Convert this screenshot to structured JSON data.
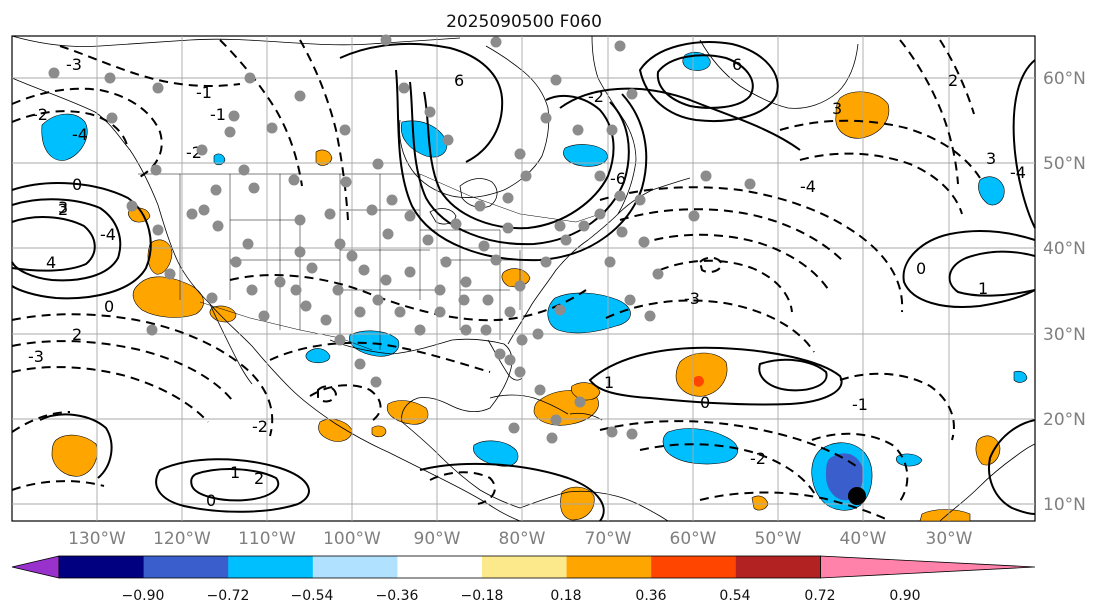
{
  "title": "2025090500 F060",
  "longitude_labels": [
    "130°W",
    "120°W",
    "110°W",
    "100°W",
    "90°W",
    "80°W",
    "70°W",
    "60°W",
    "50°W",
    "40°W",
    "30°W"
  ],
  "latitude_labels": [
    "60°N",
    "50°N",
    "40°N",
    "30°N",
    "20°N",
    "10°N"
  ],
  "colorbar": {
    "colors": [
      "#9932cc",
      "#000080",
      "#3a5fcd",
      "#00bfff",
      "#b0e2ff",
      "#ffffff",
      "#fce98c",
      "#ffa500",
      "#ff4500",
      "#b22222",
      "#ff82ab"
    ],
    "tick_labels": [
      "−0.90",
      "−0.72",
      "−0.54",
      "−0.36",
      "−0.18",
      "0.18",
      "0.36",
      "0.54",
      "0.72",
      "0.90"
    ],
    "extend": "both"
  },
  "contour_labels": [
    "0",
    "2",
    "3",
    "4",
    "6",
    "-2",
    "-3",
    "-4",
    "-1",
    "1",
    "2",
    "0",
    "-4",
    "-3",
    "-2",
    "6",
    "-2",
    "-1",
    "3",
    "0",
    "2",
    "-2",
    "1",
    "-3",
    "-4",
    "2",
    "-6",
    "0",
    "-2",
    "0",
    "1",
    "-1",
    "3",
    "-4"
  ],
  "station_marker_color": "#8c8c8c",
  "center_marker_color": "#000000"
}
